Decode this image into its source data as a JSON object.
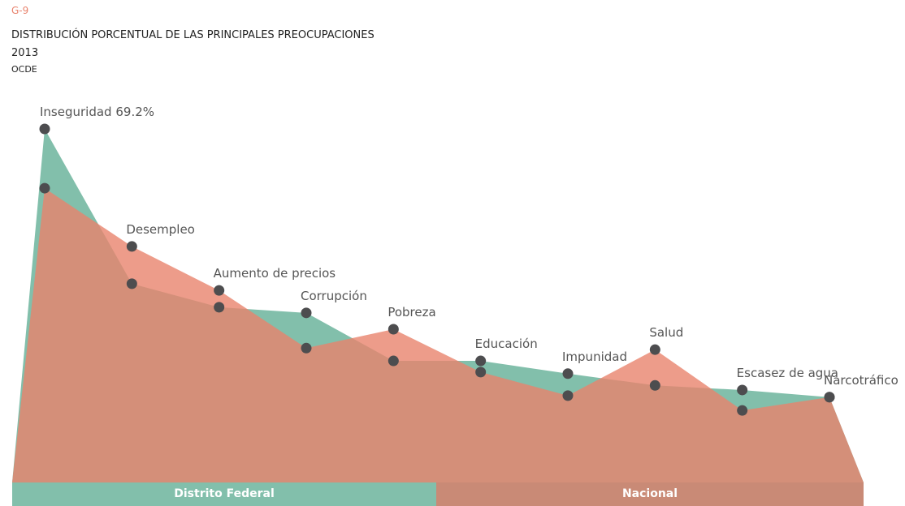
{
  "chart_data": {
    "type": "area",
    "label": "G-9",
    "title": "DISTRIBUCIÓN PORCENTUAL DE LAS PRINCIPALES PREOCUPACIONES",
    "subtitle": "2013",
    "note": "OCDE",
    "categories": [
      "Inseguridad",
      "Desempleo",
      "Aumento de precios",
      "Corrupción",
      "Pobreza",
      "Educación",
      "Impunidad",
      "Salud",
      "Escasez de agua",
      "Narcotráfico"
    ],
    "series": [
      {
        "name": "Distrito Federal",
        "color": "#82bfab",
        "values": [
          69.2,
          38.9,
          34.3,
          33.2,
          23.8,
          23.8,
          21.3,
          19.0,
          18.1,
          16.7
        ],
        "value_labels": [
          "69.2%",
          null,
          null,
          null,
          null,
          null,
          null,
          null,
          null,
          null
        ]
      },
      {
        "name": "Nacional",
        "color": "#e8836d",
        "values": [
          57.6,
          46.2,
          37.6,
          26.3,
          30.0,
          21.6,
          17.0,
          26.0,
          14.1,
          16.7
        ]
      }
    ],
    "ylim": [
      0,
      69.2
    ]
  }
}
